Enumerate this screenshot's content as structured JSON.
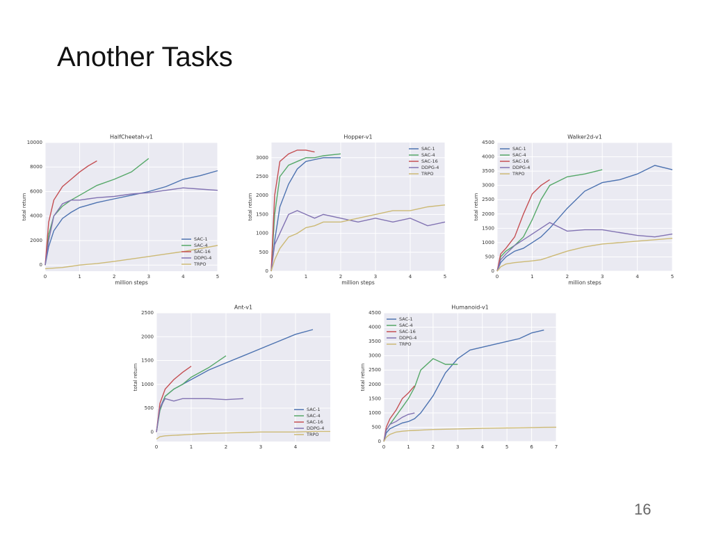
{
  "title": "Another Tasks",
  "page_number": "16",
  "chart_data": [
    {
      "type": "line",
      "title": "HalfCheetah-v1",
      "xlabel": "million steps",
      "ylabel": "total return",
      "legend": "lower right",
      "grid": true,
      "x": [
        0,
        0.1,
        0.25,
        0.5,
        0.75,
        1,
        1.25,
        1.5,
        2,
        2.5,
        3,
        3.5,
        4,
        4.5,
        5
      ],
      "xlim": [
        0,
        5
      ],
      "xticks": [
        0,
        1,
        2,
        3,
        4,
        5
      ],
      "ylim": [
        -500,
        10000
      ],
      "yticks": [
        0,
        2000,
        4000,
        6000,
        8000,
        10000
      ],
      "series": [
        {
          "name": "SAC-1",
          "color": "#4c72b0",
          "values": [
            0,
            1500,
            2800,
            3800,
            4300,
            4700,
            4900,
            5100,
            5400,
            5700,
            6000,
            6400,
            7000,
            7300,
            7700
          ]
        },
        {
          "name": "SAC-4",
          "color": "#55a868",
          "values": [
            0,
            2500,
            4000,
            4800,
            5300,
            5700,
            6100,
            6500,
            7000,
            7600,
            8700,
            null,
            null,
            null,
            null
          ]
        },
        {
          "name": "SAC-16",
          "color": "#c44e52",
          "values": [
            0,
            3500,
            5300,
            6400,
            7000,
            7600,
            8100,
            8500,
            null,
            null,
            null,
            null,
            null,
            null,
            null
          ]
        },
        {
          "name": "DDPG-4",
          "color": "#8172b2",
          "values": [
            0,
            2000,
            4000,
            5000,
            5300,
            5300,
            5400,
            5500,
            5600,
            5800,
            5900,
            6100,
            6300,
            6200,
            6100
          ]
        },
        {
          "name": "TRPO",
          "color": "#ccb974",
          "values": [
            -300,
            -280,
            -250,
            -200,
            -100,
            0,
            60,
            120,
            300,
            500,
            700,
            900,
            1100,
            1350,
            1600
          ]
        }
      ]
    },
    {
      "type": "line",
      "title": "Hopper-v1",
      "xlabel": "million steps",
      "ylabel": "total return",
      "legend": "upper right",
      "grid": true,
      "x": [
        0,
        0.1,
        0.25,
        0.5,
        0.75,
        1,
        1.25,
        1.5,
        2,
        2.5,
        3,
        3.5,
        4,
        4.5,
        5
      ],
      "xlim": [
        0,
        5
      ],
      "xticks": [
        0,
        1,
        2,
        3,
        4,
        5
      ],
      "ylim": [
        0,
        3400
      ],
      "yticks": [
        0,
        500,
        1000,
        1500,
        2000,
        2500,
        3000
      ],
      "series": [
        {
          "name": "SAC-1",
          "color": "#4c72b0",
          "values": [
            0,
            800,
            1700,
            2300,
            2700,
            2900,
            2950,
            3000,
            3000,
            null,
            null,
            null,
            null,
            null,
            null
          ]
        },
        {
          "name": "SAC-4",
          "color": "#55a868",
          "values": [
            0,
            1500,
            2500,
            2800,
            2900,
            3000,
            3000,
            3050,
            3100,
            null,
            null,
            null,
            null,
            null,
            null
          ]
        },
        {
          "name": "SAC-16",
          "color": "#c44e52",
          "values": [
            0,
            2000,
            2900,
            3100,
            3200,
            3200,
            3150,
            null,
            null,
            null,
            null,
            null,
            null,
            null,
            null
          ]
        },
        {
          "name": "DDPG-4",
          "color": "#8172b2",
          "values": [
            0,
            700,
            1000,
            1500,
            1600,
            1500,
            1400,
            1500,
            1400,
            1300,
            1400,
            1300,
            1400,
            1200,
            1300
          ]
        },
        {
          "name": "TRPO",
          "color": "#ccb974",
          "values": [
            0,
            300,
            600,
            900,
            1000,
            1150,
            1200,
            1300,
            1300,
            1400,
            1500,
            1600,
            1600,
            1700,
            1750
          ]
        }
      ]
    },
    {
      "type": "line",
      "title": "Walker2d-v1",
      "xlabel": "million steps",
      "ylabel": "total return",
      "legend": "upper left",
      "grid": true,
      "x": [
        0,
        0.1,
        0.25,
        0.5,
        0.75,
        1,
        1.25,
        1.5,
        2,
        2.5,
        3,
        3.5,
        4,
        4.5,
        5
      ],
      "xlim": [
        0,
        5
      ],
      "xticks": [
        0,
        1,
        2,
        3,
        4,
        5
      ],
      "ylim": [
        0,
        4500
      ],
      "yticks": [
        0,
        500,
        1000,
        1500,
        2000,
        2500,
        3000,
        3500,
        4000,
        4500
      ],
      "series": [
        {
          "name": "SAC-1",
          "color": "#4c72b0",
          "values": [
            0,
            300,
            500,
            700,
            800,
            1000,
            1200,
            1500,
            2200,
            2800,
            3100,
            3200,
            3400,
            3700,
            3550
          ]
        },
        {
          "name": "SAC-4",
          "color": "#55a868",
          "values": [
            0,
            500,
            700,
            900,
            1200,
            1800,
            2500,
            3000,
            3300,
            3400,
            3550,
            null,
            null,
            null,
            null
          ]
        },
        {
          "name": "SAC-16",
          "color": "#c44e52",
          "values": [
            0,
            600,
            800,
            1200,
            2000,
            2700,
            3000,
            3200,
            null,
            null,
            null,
            null,
            null,
            null,
            null
          ]
        },
        {
          "name": "DDPG-4",
          "color": "#8172b2",
          "values": [
            0,
            400,
            600,
            900,
            1100,
            1300,
            1500,
            1700,
            1400,
            1450,
            1450,
            1350,
            1250,
            1200,
            1300
          ]
        },
        {
          "name": "TRPO",
          "color": "#ccb974",
          "values": [
            0,
            150,
            250,
            300,
            330,
            360,
            400,
            500,
            700,
            850,
            950,
            1000,
            1050,
            1100,
            1150
          ]
        }
      ]
    },
    {
      "type": "line",
      "title": "Ant-v1",
      "ylabel": "total return",
      "legend": "lower right",
      "grid": true,
      "x": [
        0,
        0.1,
        0.25,
        0.5,
        0.75,
        1,
        1.25,
        1.5,
        2,
        2.5,
        3,
        3.5,
        4,
        4.5,
        5
      ],
      "xlim": [
        0,
        5
      ],
      "xticks": [
        0,
        1,
        2,
        3,
        4
      ],
      "ylim": [
        -200,
        2500
      ],
      "yticks": [
        0,
        500,
        1000,
        1500,
        2000,
        2500
      ],
      "series": [
        {
          "name": "SAC-1",
          "color": "#4c72b0",
          "values": [
            0,
            500,
            750,
            900,
            1000,
            1100,
            1200,
            1300,
            1450,
            1600,
            1750,
            1900,
            2050,
            2150,
            null
          ]
        },
        {
          "name": "SAC-4",
          "color": "#55a868",
          "values": [
            0,
            450,
            750,
            900,
            1000,
            1150,
            1250,
            1350,
            1600,
            null,
            null,
            null,
            null,
            null,
            null
          ]
        },
        {
          "name": "SAC-16",
          "color": "#c44e52",
          "values": [
            0,
            600,
            900,
            1100,
            1250,
            1380,
            null,
            null,
            null,
            null,
            null,
            null,
            null,
            null,
            null
          ]
        },
        {
          "name": "DDPG-4",
          "color": "#8172b2",
          "values": [
            0,
            500,
            700,
            650,
            700,
            700,
            700,
            700,
            680,
            700,
            null,
            null,
            null,
            null,
            null
          ]
        },
        {
          "name": "TRPO",
          "color": "#ccb974",
          "values": [
            -150,
            -100,
            -80,
            -70,
            -60,
            -50,
            -40,
            -30,
            -20,
            -10,
            0,
            0,
            0,
            10,
            10
          ]
        }
      ]
    },
    {
      "type": "line",
      "title": "Humanoid-v1",
      "ylabel": "total return",
      "legend": "upper left",
      "grid": true,
      "x": [
        0,
        0.1,
        0.25,
        0.5,
        0.75,
        1,
        1.25,
        1.5,
        2,
        2.5,
        3,
        3.5,
        4,
        4.5,
        5,
        5.5,
        6,
        6.5,
        7
      ],
      "xlim": [
        0,
        7
      ],
      "xticks": [
        0,
        1,
        2,
        3,
        4,
        5,
        6,
        7
      ],
      "ylim": [
        0,
        4500
      ],
      "yticks": [
        0,
        500,
        1000,
        1500,
        2000,
        2500,
        3000,
        3500,
        4000,
        4500
      ],
      "series": [
        {
          "name": "SAC-1",
          "color": "#4c72b0",
          "values": [
            0,
            300,
            450,
            550,
            650,
            700,
            800,
            1000,
            1600,
            2400,
            2900,
            3200,
            3300,
            3400,
            3500,
            3600,
            3800,
            3900,
            null
          ]
        },
        {
          "name": "SAC-4",
          "color": "#55a868",
          "values": [
            0,
            400,
            600,
            900,
            1200,
            1500,
            1900,
            2500,
            2900,
            2700,
            2700,
            null,
            null,
            null,
            null,
            null,
            null,
            null,
            null
          ]
        },
        {
          "name": "SAC-16",
          "color": "#c44e52",
          "values": [
            0,
            500,
            800,
            1100,
            1500,
            1700,
            1950,
            null,
            null,
            null,
            null,
            null,
            null,
            null,
            null,
            null,
            null,
            null,
            null
          ]
        },
        {
          "name": "DDPG-4",
          "color": "#8172b2",
          "values": [
            0,
            400,
            600,
            700,
            850,
            950,
            1000,
            null,
            null,
            null,
            null,
            null,
            null,
            null,
            null,
            null,
            null,
            null,
            null
          ]
        },
        {
          "name": "TRPO",
          "color": "#ccb974",
          "values": [
            0,
            150,
            250,
            330,
            360,
            380,
            390,
            400,
            420,
            430,
            440,
            450,
            460,
            470,
            475,
            480,
            490,
            495,
            500
          ]
        }
      ]
    }
  ]
}
